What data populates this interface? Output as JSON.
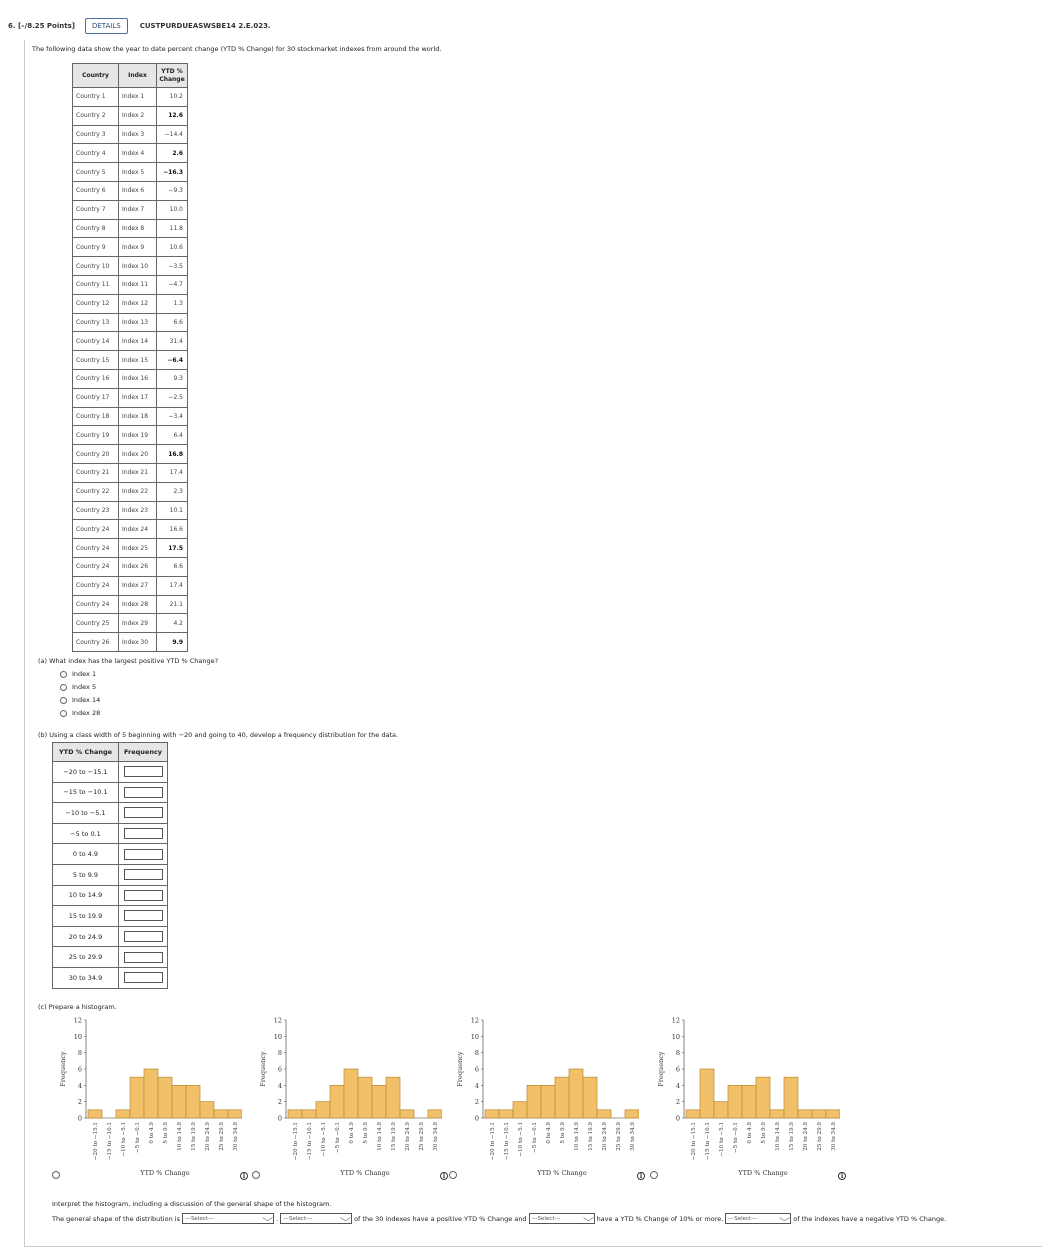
{
  "header": {
    "points": "6.  [–/8.25 Points]",
    "details": "DETAILS",
    "code": "CUSTPURDUEASWSBE14 2.E.023."
  },
  "intro": "The following data show the year to date percent change (YTD % Change) for 30 stockmarket indexes from around the world.",
  "table": {
    "headers": [
      "Country",
      "Index",
      "YTD %\nChange"
    ],
    "rows": [
      [
        "Country 1",
        "Index 1",
        "10.2"
      ],
      [
        "Country 2",
        "Index 2",
        "12.6"
      ],
      [
        "Country 3",
        "Index 3",
        "−14.4"
      ],
      [
        "Country 4",
        "Index 4",
        "2.6"
      ],
      [
        "Country 5",
        "Index 5",
        "−16.3"
      ],
      [
        "Country 6",
        "Index 6",
        "−9.3"
      ],
      [
        "Country 7",
        "Index 7",
        "10.0"
      ],
      [
        "Country 8",
        "Index 8",
        "11.8"
      ],
      [
        "Country 9",
        "Index 9",
        "10.6"
      ],
      [
        "Country 10",
        "Index 10",
        "−3.5"
      ],
      [
        "Country 11",
        "Index 11",
        "−4.7"
      ],
      [
        "Country 12",
        "Index 12",
        "1.3"
      ],
      [
        "Country 13",
        "Index 13",
        "6.6"
      ],
      [
        "Country 14",
        "Index 14",
        "31.4"
      ],
      [
        "Country 15",
        "Index 15",
        "−6.4"
      ],
      [
        "Country 16",
        "Index 16",
        "9.3"
      ],
      [
        "Country 17",
        "Index 17",
        "−2.5"
      ],
      [
        "Country 18",
        "Index 18",
        "−3.4"
      ],
      [
        "Country 19",
        "Index 19",
        "6.4"
      ],
      [
        "Country 20",
        "Index 20",
        "16.8"
      ],
      [
        "Country 21",
        "Index 21",
        "17.4"
      ],
      [
        "Country 22",
        "Index 22",
        "2.3"
      ],
      [
        "Country 23",
        "Index 23",
        "10.1"
      ],
      [
        "Country 24",
        "Index 24",
        "16.6"
      ],
      [
        "Country 24",
        "Index 25",
        "17.5"
      ],
      [
        "Country 24",
        "Index 26",
        "6.6"
      ],
      [
        "Country 24",
        "Index 27",
        "17.4"
      ],
      [
        "Country 24",
        "Index 28",
        "21.1"
      ],
      [
        "Country 25",
        "Index 29",
        "4.2"
      ],
      [
        "Country 26",
        "Index 30",
        "9.9"
      ]
    ],
    "bold_rows": [
      1,
      3,
      4,
      14,
      19,
      24,
      29
    ]
  },
  "part_a": {
    "question": "(a)   What index has the largest positive YTD % Change?",
    "options": [
      "Index 1",
      "Index 5",
      "Index 14",
      "Index 28"
    ]
  },
  "part_b": {
    "question": "(b)   Using a class width of 5 beginning with −20 and going to 40, develop a frequency distribution for the data.",
    "headers": [
      "YTD % Change",
      "Frequency"
    ],
    "classes": [
      "−20 to −15.1",
      "−15 to −10.1",
      "−10 to −5.1",
      "−5 to 0.1",
      "0 to 4.9",
      "5 to 9.9",
      "10 to 14.9",
      "15 to 19.9",
      "20 to 24.9",
      "25 to 29.9",
      "30 to 34.9"
    ]
  },
  "part_c": {
    "question": "(c)   Prepare a histogram.",
    "interpret": "Interpret the histogram, including a discussion of the general shape of the histogram.",
    "sentence": {
      "p1": "The general shape of the distribution is",
      "p2": ".",
      "p3": "of the 30 indexes have a positive YTD % Change and",
      "p4": "have a YTD % Change of 10% or more.",
      "p5": "of the indexes have a negative YTD % Change.",
      "select": "---Select---"
    },
    "info_icon": "i"
  },
  "chart_data": [
    {
      "type": "bar",
      "categories": [
        "-20 to -15.1",
        "-15 to -10.1",
        "-10 to -5.1",
        "-5 to -0.1",
        "0 to 4.9",
        "5 to 9.9",
        "10 to 14.9",
        "15 to 19.9",
        "20 to 24.9",
        "25 to 29.9",
        "30 to 34.9"
      ],
      "values": [
        1,
        0,
        1,
        5,
        6,
        5,
        4,
        4,
        2,
        1,
        1
      ],
      "xlabel": "YTD % Change",
      "ylabel": "Frequency",
      "ylim": [
        0,
        12
      ],
      "yticks": [
        0,
        2,
        4,
        6,
        8,
        10,
        12
      ]
    },
    {
      "type": "bar",
      "categories": [
        "-20 to -15.1",
        "-15 to -10.1",
        "-10 to -5.1",
        "-5 to -0.1",
        "0 to 4.9",
        "5 to 9.9",
        "10 to 14.9",
        "15 to 19.9",
        "20 to 24.9",
        "25 to 29.9",
        "30 to 34.9"
      ],
      "values": [
        1,
        1,
        2,
        4,
        6,
        5,
        4,
        5,
        1,
        0,
        1
      ],
      "xlabel": "YTD % Change",
      "ylabel": "Frequency",
      "ylim": [
        0,
        12
      ],
      "yticks": [
        0,
        2,
        4,
        6,
        8,
        10,
        12
      ]
    },
    {
      "type": "bar",
      "categories": [
        "-20 to -15.1",
        "-15 to -10.1",
        "-10 to -5.1",
        "-5 to -0.1",
        "0 to 4.9",
        "5 to 9.9",
        "10 to 14.9",
        "15 to 19.9",
        "20 to 24.9",
        "25 to 29.9",
        "30 to 34.9"
      ],
      "values": [
        1,
        1,
        2,
        4,
        4,
        5,
        6,
        5,
        1,
        0,
        1
      ],
      "xlabel": "YTD % Change",
      "ylabel": "Frequency",
      "ylim": [
        0,
        12
      ],
      "yticks": [
        0,
        2,
        4,
        6,
        8,
        10,
        12
      ]
    },
    {
      "type": "bar",
      "categories": [
        "-20 to -15.1",
        "-15 to -10.1",
        "-10 to -5.1",
        "-5 to -0.1",
        "0 to 4.9",
        "5 to 9.9",
        "10 to 14.9",
        "15 to 19.9",
        "20 to 24.9",
        "25 to 29.9",
        "30 to 34.9"
      ],
      "values": [
        1,
        6,
        2,
        4,
        4,
        5,
        1,
        5,
        1,
        1,
        1
      ],
      "xlabel": "YTD % Change",
      "ylabel": "Frequency",
      "ylim": [
        0,
        12
      ],
      "yticks": [
        0,
        2,
        4,
        6,
        8,
        10,
        12
      ]
    }
  ],
  "colors": {
    "bar_fill": "#f1c069",
    "bar_stroke": "#b98a35",
    "header_bg": "#e6e6e6"
  }
}
